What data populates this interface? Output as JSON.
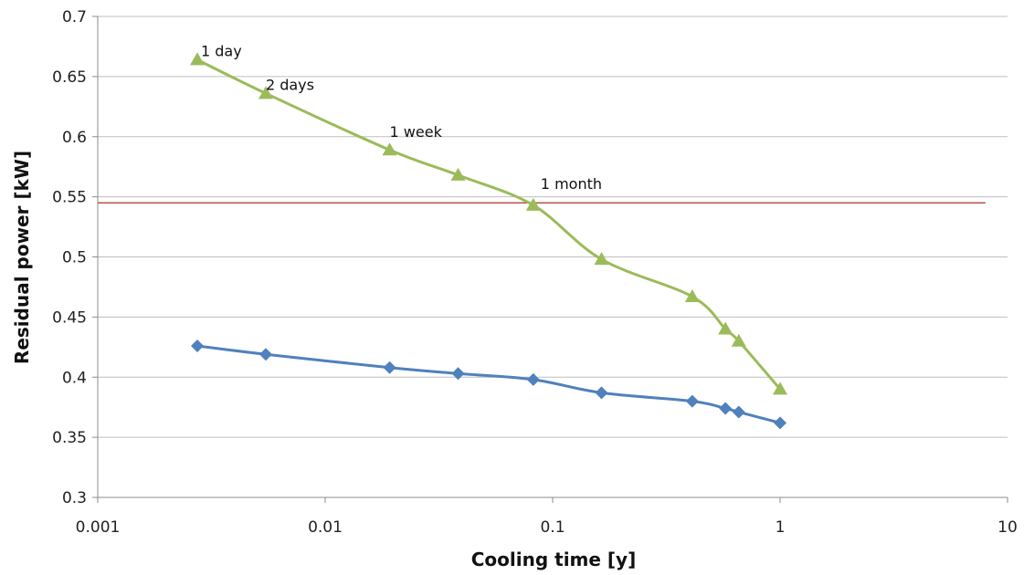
{
  "chart_data": {
    "type": "scatter",
    "xlabel": "Cooling time [y]",
    "ylabel": "Residual power [kW]",
    "x_scale": "log",
    "xlim": [
      0.001,
      10
    ],
    "ylim": [
      0.3,
      0.7
    ],
    "x_ticks": [
      "0.001",
      "0.01",
      "0.1",
      "1",
      "10"
    ],
    "y_ticks": [
      "0.3",
      "0.35",
      "0.4",
      "0.45",
      "0.5",
      "0.55",
      "0.6",
      "0.65",
      "0.7"
    ],
    "grid": "horizontal",
    "reference_line": {
      "y": 0.545,
      "x_range": [
        0.001,
        8
      ],
      "color": "#c0504d"
    },
    "series": [
      {
        "color": "#9bbb59",
        "marker": "triangle",
        "x": [
          0.00274,
          0.00548,
          0.0192,
          0.0384,
          0.0822,
          0.164,
          0.411,
          0.575,
          0.658,
          1.0
        ],
        "y": [
          0.664,
          0.636,
          0.589,
          0.568,
          0.543,
          0.498,
          0.467,
          0.44,
          0.43,
          0.39
        ]
      },
      {
        "color": "#4f81bd",
        "marker": "diamond",
        "x": [
          0.00274,
          0.00548,
          0.0192,
          0.0384,
          0.0822,
          0.164,
          0.411,
          0.575,
          0.658,
          1.0
        ],
        "y": [
          0.426,
          0.419,
          0.408,
          0.403,
          0.398,
          0.387,
          0.38,
          0.374,
          0.371,
          0.362
        ]
      }
    ],
    "annotations": [
      {
        "text": "1 day",
        "x": 0.00274,
        "y": 0.664
      },
      {
        "text": "2 days",
        "x": 0.00548,
        "y": 0.636
      },
      {
        "text": "1 week",
        "x": 0.0192,
        "y": 0.589
      },
      {
        "text": "1 month",
        "x": 0.0822,
        "y": 0.543
      }
    ]
  }
}
